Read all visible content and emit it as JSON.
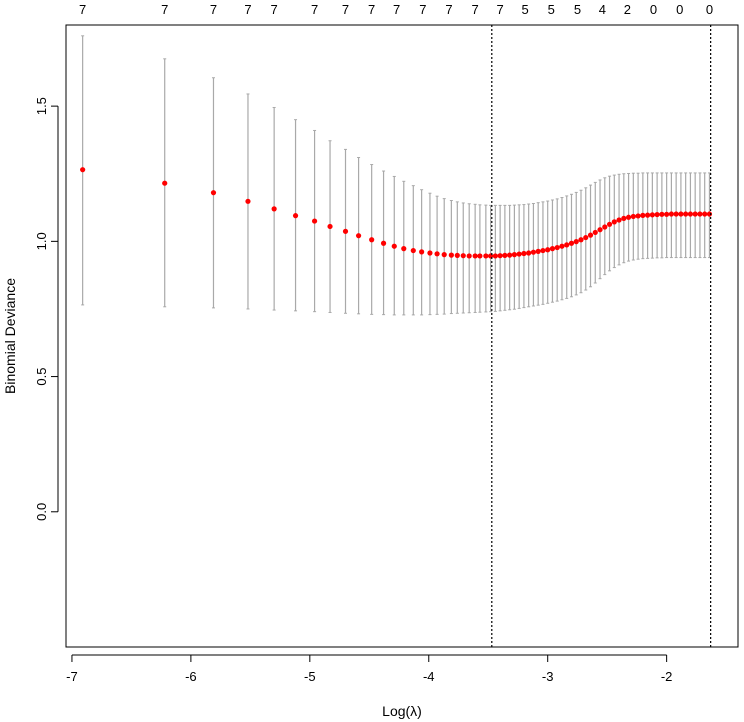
{
  "chart_data": {
    "type": "scatter",
    "xlabel": "Log(λ)",
    "ylabel": "Binomial Deviance",
    "xlim": [
      -7.05,
      -1.4
    ],
    "ylim": [
      -0.5,
      1.8
    ],
    "x_ticks": [
      -7,
      -6,
      -5,
      -4,
      -3,
      -2
    ],
    "y_ticks": [
      0.0,
      0.5,
      1.0,
      1.5
    ],
    "x_tick_labels": [
      "-7",
      "-6",
      "-5",
      "-4",
      "-3",
      "-2"
    ],
    "y_tick_labels": [
      "0.0",
      "0.5",
      "1.0",
      "1.5"
    ],
    "top_axis": {
      "positions": [
        -6.91,
        -6.22,
        -5.81,
        -5.52,
        -5.3,
        -4.96,
        -4.7,
        -4.48,
        -4.27,
        -4.05,
        -3.83,
        -3.61,
        -3.4,
        -3.19,
        -2.97,
        -2.75,
        -2.54,
        -2.33,
        -2.11,
        -1.89,
        -1.64
      ],
      "labels": [
        "7",
        "7",
        "7",
        "7",
        "7",
        "7",
        "7",
        "7",
        "7",
        "7",
        "7",
        "7",
        "7",
        "5",
        "5",
        "5",
        "4",
        "2",
        "0",
        "0",
        "0"
      ]
    },
    "vlines": [
      -3.47,
      -1.63
    ],
    "points": {
      "color": "#ff0000",
      "x": [
        -6.91,
        -6.22,
        -5.81,
        -5.52,
        -5.3,
        -5.12,
        -4.96,
        -4.83,
        -4.7,
        -4.59,
        -4.48,
        -4.38,
        -4.29,
        -4.21,
        -4.13,
        -4.06,
        -3.99,
        -3.93,
        -3.87,
        -3.81,
        -3.76,
        -3.71,
        -3.66,
        -3.61,
        -3.57,
        -3.52,
        -3.48,
        -3.44,
        -3.4,
        -3.36,
        -3.32,
        -3.28,
        -3.24,
        -3.2,
        -3.16,
        -3.12,
        -3.08,
        -3.04,
        -3.0,
        -2.96,
        -2.92,
        -2.88,
        -2.84,
        -2.8,
        -2.76,
        -2.72,
        -2.68,
        -2.64,
        -2.6,
        -2.56,
        -2.52,
        -2.48,
        -2.44,
        -2.4,
        -2.36,
        -2.32,
        -2.28,
        -2.24,
        -2.2,
        -2.16,
        -2.12,
        -2.08,
        -2.04,
        -2.0,
        -1.96,
        -1.92,
        -1.88,
        -1.84,
        -1.8,
        -1.76,
        -1.72,
        -1.68,
        -1.64
      ],
      "y": [
        1.265,
        1.215,
        1.18,
        1.148,
        1.12,
        1.095,
        1.075,
        1.055,
        1.037,
        1.021,
        1.006,
        0.993,
        0.982,
        0.973,
        0.966,
        0.961,
        0.957,
        0.954,
        0.951,
        0.949,
        0.948,
        0.947,
        0.946,
        0.946,
        0.946,
        0.946,
        0.946,
        0.946,
        0.947,
        0.948,
        0.949,
        0.951,
        0.953,
        0.955,
        0.957,
        0.96,
        0.963,
        0.966,
        0.969,
        0.973,
        0.977,
        0.982,
        0.987,
        0.993,
        0.999,
        1.006,
        1.014,
        1.023,
        1.033,
        1.043,
        1.053,
        1.063,
        1.072,
        1.079,
        1.085,
        1.089,
        1.092,
        1.094,
        1.096,
        1.097,
        1.098,
        1.099,
        1.1,
        1.1,
        1.101,
        1.101,
        1.101,
        1.101,
        1.101,
        1.101,
        1.101,
        1.101,
        1.101
      ],
      "lower": [
        0.765,
        0.758,
        0.754,
        0.75,
        0.746,
        0.743,
        0.74,
        0.737,
        0.734,
        0.732,
        0.73,
        0.729,
        0.728,
        0.728,
        0.728,
        0.728,
        0.729,
        0.73,
        0.731,
        0.733,
        0.734,
        0.735,
        0.736,
        0.737,
        0.738,
        0.739,
        0.74,
        0.741,
        0.743,
        0.745,
        0.747,
        0.749,
        0.752,
        0.755,
        0.758,
        0.761,
        0.764,
        0.767,
        0.771,
        0.775,
        0.779,
        0.784,
        0.789,
        0.795,
        0.802,
        0.81,
        0.82,
        0.832,
        0.846,
        0.862,
        0.877,
        0.891,
        0.903,
        0.913,
        0.921,
        0.927,
        0.931,
        0.934,
        0.936,
        0.937,
        0.938,
        0.939,
        0.939,
        0.94,
        0.94,
        0.94,
        0.94,
        0.94,
        0.94,
        0.94,
        0.94,
        0.94,
        0.94
      ],
      "upper": [
        1.76,
        1.675,
        1.605,
        1.545,
        1.495,
        1.45,
        1.41,
        1.372,
        1.34,
        1.31,
        1.284,
        1.26,
        1.24,
        1.222,
        1.206,
        1.191,
        1.178,
        1.167,
        1.158,
        1.151,
        1.146,
        1.142,
        1.139,
        1.137,
        1.135,
        1.134,
        1.133,
        1.133,
        1.133,
        1.133,
        1.133,
        1.134,
        1.135,
        1.136,
        1.138,
        1.14,
        1.143,
        1.146,
        1.149,
        1.153,
        1.157,
        1.162,
        1.168,
        1.174,
        1.181,
        1.189,
        1.198,
        1.208,
        1.218,
        1.227,
        1.235,
        1.241,
        1.245,
        1.248,
        1.25,
        1.251,
        1.252,
        1.252,
        1.253,
        1.253,
        1.253,
        1.253,
        1.253,
        1.253,
        1.253,
        1.253,
        1.253,
        1.253,
        1.253,
        1.253,
        1.253,
        1.253,
        1.253
      ]
    },
    "errorbar_color": "#a9a9a9",
    "grid": false
  }
}
